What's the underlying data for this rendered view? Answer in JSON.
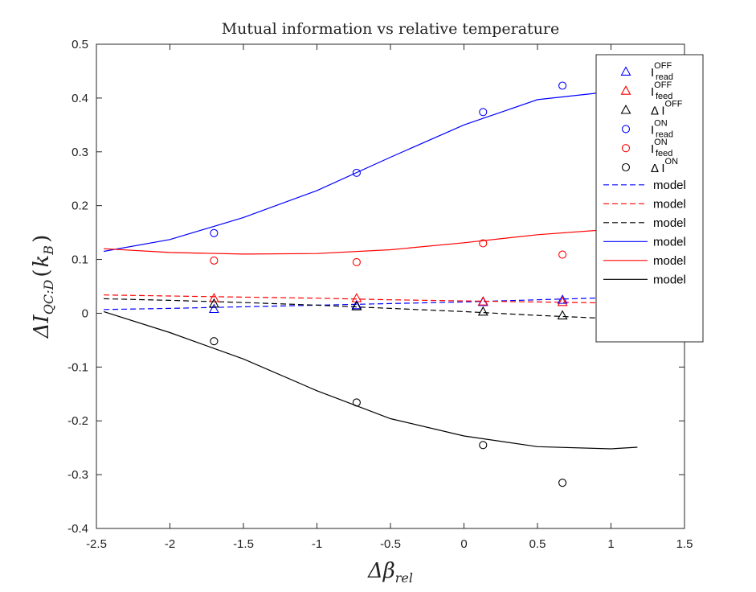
{
  "chart_data": {
    "type": "scatter",
    "title": "Mutual information vs relative temperature",
    "xlabel": {
      "base": "Δβ",
      "sub": "rel"
    },
    "ylabel": {
      "base": "ΔI",
      "sub": "QC:D",
      "unit_open": "(",
      "unit_base": "k",
      "unit_sub": "B",
      "unit_close": ")"
    },
    "xlim": [
      -2.5,
      1.5
    ],
    "ylim": [
      -0.4,
      0.5
    ],
    "xticks": [
      -2.5,
      -2,
      -1.5,
      -1,
      -0.5,
      0,
      0.5,
      1,
      1.5
    ],
    "yticks": [
      -0.4,
      -0.3,
      -0.2,
      -0.1,
      0,
      0.1,
      0.2,
      0.3,
      0.4,
      0.5
    ],
    "xtick_labels": [
      "-2.5",
      "-2",
      "-1.5",
      "-1",
      "-0.5",
      "0",
      "0.5",
      "1",
      "1.5"
    ],
    "ytick_labels": [
      "-0.4",
      "-0.3",
      "-0.2",
      "-0.1",
      "0",
      "0.1",
      "0.2",
      "0.3",
      "0.4",
      "0.5"
    ],
    "grid": false,
    "legend_position": "top-right",
    "series": [
      {
        "label_base": "I",
        "label_sup": "OFF",
        "label_sub": "read",
        "marker": "triangle",
        "color": "#0000ff",
        "x": [
          -1.7,
          -0.73,
          0.13,
          0.67
        ],
        "y": [
          0.008,
          0.015,
          0.021,
          0.025
        ]
      },
      {
        "label_base": "I",
        "label_sup": "OFF",
        "label_sub": "feed",
        "marker": "triangle",
        "color": "#ff0000",
        "x": [
          -1.7,
          -0.73,
          0.13,
          0.67
        ],
        "y": [
          0.028,
          0.028,
          0.022,
          0.021
        ]
      },
      {
        "label_base": "Δ I",
        "label_sup": "OFF",
        "label_sub": "",
        "marker": "triangle",
        "color": "#000000",
        "x": [
          -1.7,
          -0.73,
          0.13,
          0.67
        ],
        "y": [
          0.018,
          0.013,
          0.003,
          -0.004
        ]
      },
      {
        "label_base": "I",
        "label_sup": "ON",
        "label_sub": "read",
        "marker": "circle",
        "color": "#0000ff",
        "x": [
          -1.7,
          -0.73,
          0.13,
          0.67
        ],
        "y": [
          0.149,
          0.261,
          0.374,
          0.423
        ]
      },
      {
        "label_base": "I",
        "label_sup": "ON",
        "label_sub": "feed",
        "marker": "circle",
        "color": "#ff0000",
        "x": [
          -1.7,
          -0.73,
          0.13,
          0.67
        ],
        "y": [
          0.098,
          0.095,
          0.13,
          0.109
        ]
      },
      {
        "label_base": "Δ I",
        "label_sup": "ON",
        "label_sub": "",
        "marker": "circle",
        "color": "#000000",
        "x": [
          -1.7,
          -0.73,
          0.13,
          0.67
        ],
        "y": [
          -0.052,
          -0.166,
          -0.245,
          -0.315
        ]
      }
    ],
    "models": [
      {
        "label": "model",
        "style": "dashed",
        "color": "#0000ff",
        "x": [
          -2.45,
          -2.0,
          -1.5,
          -1.0,
          -0.5,
          0.0,
          0.5,
          1.0,
          1.18
        ],
        "y": [
          0.007,
          0.009,
          0.012,
          0.015,
          0.018,
          0.021,
          0.025,
          0.029,
          0.031
        ]
      },
      {
        "label": "model",
        "style": "dashed",
        "color": "#ff0000",
        "x": [
          -2.45,
          -2.0,
          -1.5,
          -1.0,
          -0.5,
          0.0,
          0.5,
          1.0,
          1.18
        ],
        "y": [
          0.034,
          0.032,
          0.03,
          0.028,
          0.025,
          0.023,
          0.021,
          0.019,
          0.019
        ]
      },
      {
        "label": "model",
        "style": "dashed",
        "color": "#000000",
        "x": [
          -2.45,
          -2.0,
          -1.5,
          -1.0,
          -0.5,
          0.0,
          0.5,
          1.0,
          1.18
        ],
        "y": [
          0.027,
          0.024,
          0.02,
          0.015,
          0.009,
          0.003,
          -0.004,
          -0.01,
          -0.013
        ]
      },
      {
        "label": "model",
        "style": "solid",
        "color": "#0000ff",
        "x": [
          -2.45,
          -2.0,
          -1.5,
          -1.0,
          -0.5,
          0.0,
          0.5,
          1.0,
          1.18
        ],
        "y": [
          0.115,
          0.137,
          0.178,
          0.228,
          0.29,
          0.35,
          0.397,
          0.412,
          0.41
        ]
      },
      {
        "label": "model",
        "style": "solid",
        "color": "#ff0000",
        "x": [
          -2.45,
          -2.0,
          -1.5,
          -1.0,
          -0.5,
          0.0,
          0.5,
          1.0,
          1.18
        ],
        "y": [
          0.12,
          0.113,
          0.11,
          0.111,
          0.118,
          0.131,
          0.146,
          0.156,
          0.157
        ]
      },
      {
        "label": "model",
        "style": "solid",
        "color": "#000000",
        "x": [
          -2.45,
          -2.0,
          -1.5,
          -1.0,
          -0.5,
          0.0,
          0.5,
          1.0,
          1.18
        ],
        "y": [
          0.003,
          -0.036,
          -0.085,
          -0.144,
          -0.196,
          -0.228,
          -0.248,
          -0.252,
          -0.249
        ]
      }
    ]
  }
}
